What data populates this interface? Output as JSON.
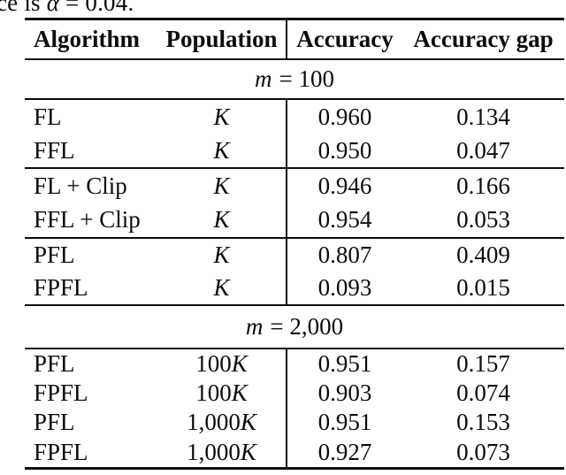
{
  "caption": {
    "prefix": "ce is",
    "var": "α",
    "rest": "= 0.04."
  },
  "table": {
    "headers": [
      "Algorithm",
      "Population",
      "Accuracy",
      "Accuracy gap"
    ],
    "sections": [
      {
        "kind": "group-label",
        "var": "m",
        "rest": "= 100"
      },
      {
        "kind": "rows",
        "rows": [
          {
            "algorithm": "FL",
            "population_num": "",
            "population_var": "K",
            "accuracy": "0.960",
            "accuracy_gap": "0.134"
          },
          {
            "algorithm": "FFL",
            "population_num": "",
            "population_var": "K",
            "accuracy": "0.950",
            "accuracy_gap": "0.047"
          }
        ]
      },
      {
        "kind": "rows",
        "rows": [
          {
            "algorithm": "FL + Clip",
            "population_num": "",
            "population_var": "K",
            "accuracy": "0.946",
            "accuracy_gap": "0.166"
          },
          {
            "algorithm": "FFL + Clip",
            "population_num": "",
            "population_var": "K",
            "accuracy": "0.954",
            "accuracy_gap": "0.053"
          }
        ]
      },
      {
        "kind": "rows",
        "rows": [
          {
            "algorithm": "PFL",
            "population_num": "",
            "population_var": "K",
            "accuracy": "0.807",
            "accuracy_gap": "0.409"
          },
          {
            "algorithm": "FPFL",
            "population_num": "",
            "population_var": "K",
            "accuracy": "0.093",
            "accuracy_gap": "0.015"
          }
        ]
      },
      {
        "kind": "group-label",
        "var": "m",
        "rest": "= 2,000"
      },
      {
        "kind": "rows",
        "rows": [
          {
            "algorithm": "PFL",
            "population_num": "100",
            "population_var": "K",
            "accuracy": "0.951",
            "accuracy_gap": "0.157"
          },
          {
            "algorithm": "FPFL",
            "population_num": "100",
            "population_var": "K",
            "accuracy": "0.903",
            "accuracy_gap": "0.074"
          },
          {
            "algorithm": "PFL",
            "population_num": "1,000",
            "population_var": "K",
            "accuracy": "0.951",
            "accuracy_gap": "0.153"
          },
          {
            "algorithm": "FPFL",
            "population_num": "1,000",
            "population_var": "K",
            "accuracy": "0.927",
            "accuracy_gap": "0.073"
          }
        ]
      }
    ]
  }
}
